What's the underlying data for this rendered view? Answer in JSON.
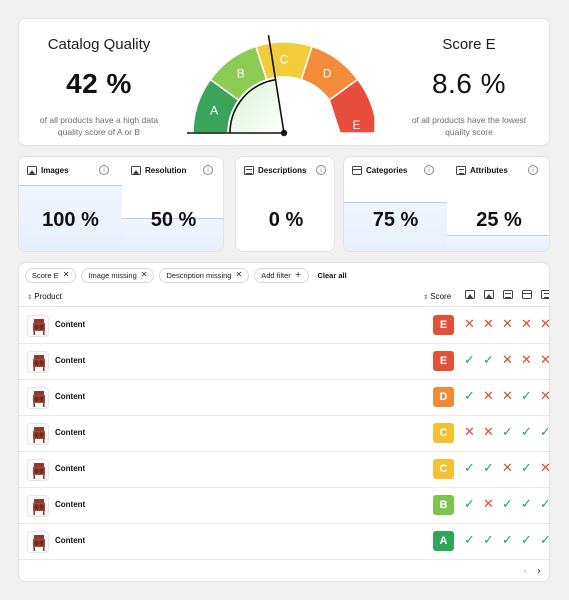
{
  "quality": {
    "title": "Catalog Quality",
    "value": "42 %",
    "description": "of all products have a high data quality score of A or B"
  },
  "gauge": {
    "segments": [
      {
        "label": "A",
        "color": "#3aa55a"
      },
      {
        "label": "B",
        "color": "#8ccc52"
      },
      {
        "label": "C",
        "color": "#f3cc3b"
      },
      {
        "label": "D",
        "color": "#f28c3a"
      },
      {
        "label": "E",
        "color": "#e74c3c"
      }
    ],
    "needle_fraction": 0.45
  },
  "score": {
    "title": "Score E",
    "value": "8.6 %",
    "description": "of all products have the lowest quality score"
  },
  "metrics": {
    "images": {
      "label": "Images",
      "value": "100 %",
      "fraction": 1.0
    },
    "resolution": {
      "label": "Resolution",
      "value": "50 %",
      "fraction": 0.5
    },
    "descriptions": {
      "label": "Descriptions",
      "value": "0 %",
      "fraction": 0.0
    },
    "categories": {
      "label": "Categories",
      "value": "75 %",
      "fraction": 0.75
    },
    "attributes": {
      "label": "Attributes",
      "value": "25 %",
      "fraction": 0.25
    }
  },
  "filters": {
    "chips": [
      "Score E",
      "Image missing",
      "Description missing"
    ],
    "add_label": "Add filter",
    "clear_label": "Clear all"
  },
  "table": {
    "col_product": "Product",
    "col_score": "Score",
    "rows": [
      {
        "name": "Content",
        "score": "E",
        "checks": [
          false,
          false,
          false,
          false,
          false
        ]
      },
      {
        "name": "Content",
        "score": "E",
        "checks": [
          true,
          true,
          false,
          false,
          false
        ]
      },
      {
        "name": "Content",
        "score": "D",
        "checks": [
          true,
          false,
          false,
          true,
          false
        ]
      },
      {
        "name": "Content",
        "score": "C",
        "checks": [
          false,
          false,
          true,
          true,
          true
        ]
      },
      {
        "name": "Content",
        "score": "C",
        "checks": [
          true,
          true,
          false,
          true,
          false
        ]
      },
      {
        "name": "Content",
        "score": "B",
        "checks": [
          true,
          false,
          true,
          true,
          true
        ]
      },
      {
        "name": "Content",
        "score": "A",
        "checks": [
          true,
          true,
          true,
          true,
          true
        ]
      }
    ]
  },
  "score_colors": {
    "A": "#2fa55a",
    "B": "#7cc44c",
    "C": "#f1c232",
    "D": "#f08b35",
    "E": "#e3503a"
  },
  "status_colors": {
    "ok": "#23a26a",
    "missing": "#e04b3a"
  },
  "icons": {
    "header_columns": [
      "image-icon",
      "resolution-icon",
      "description-icon",
      "category-icon",
      "attributes-icon"
    ],
    "check": "✓",
    "cross": "✕"
  }
}
